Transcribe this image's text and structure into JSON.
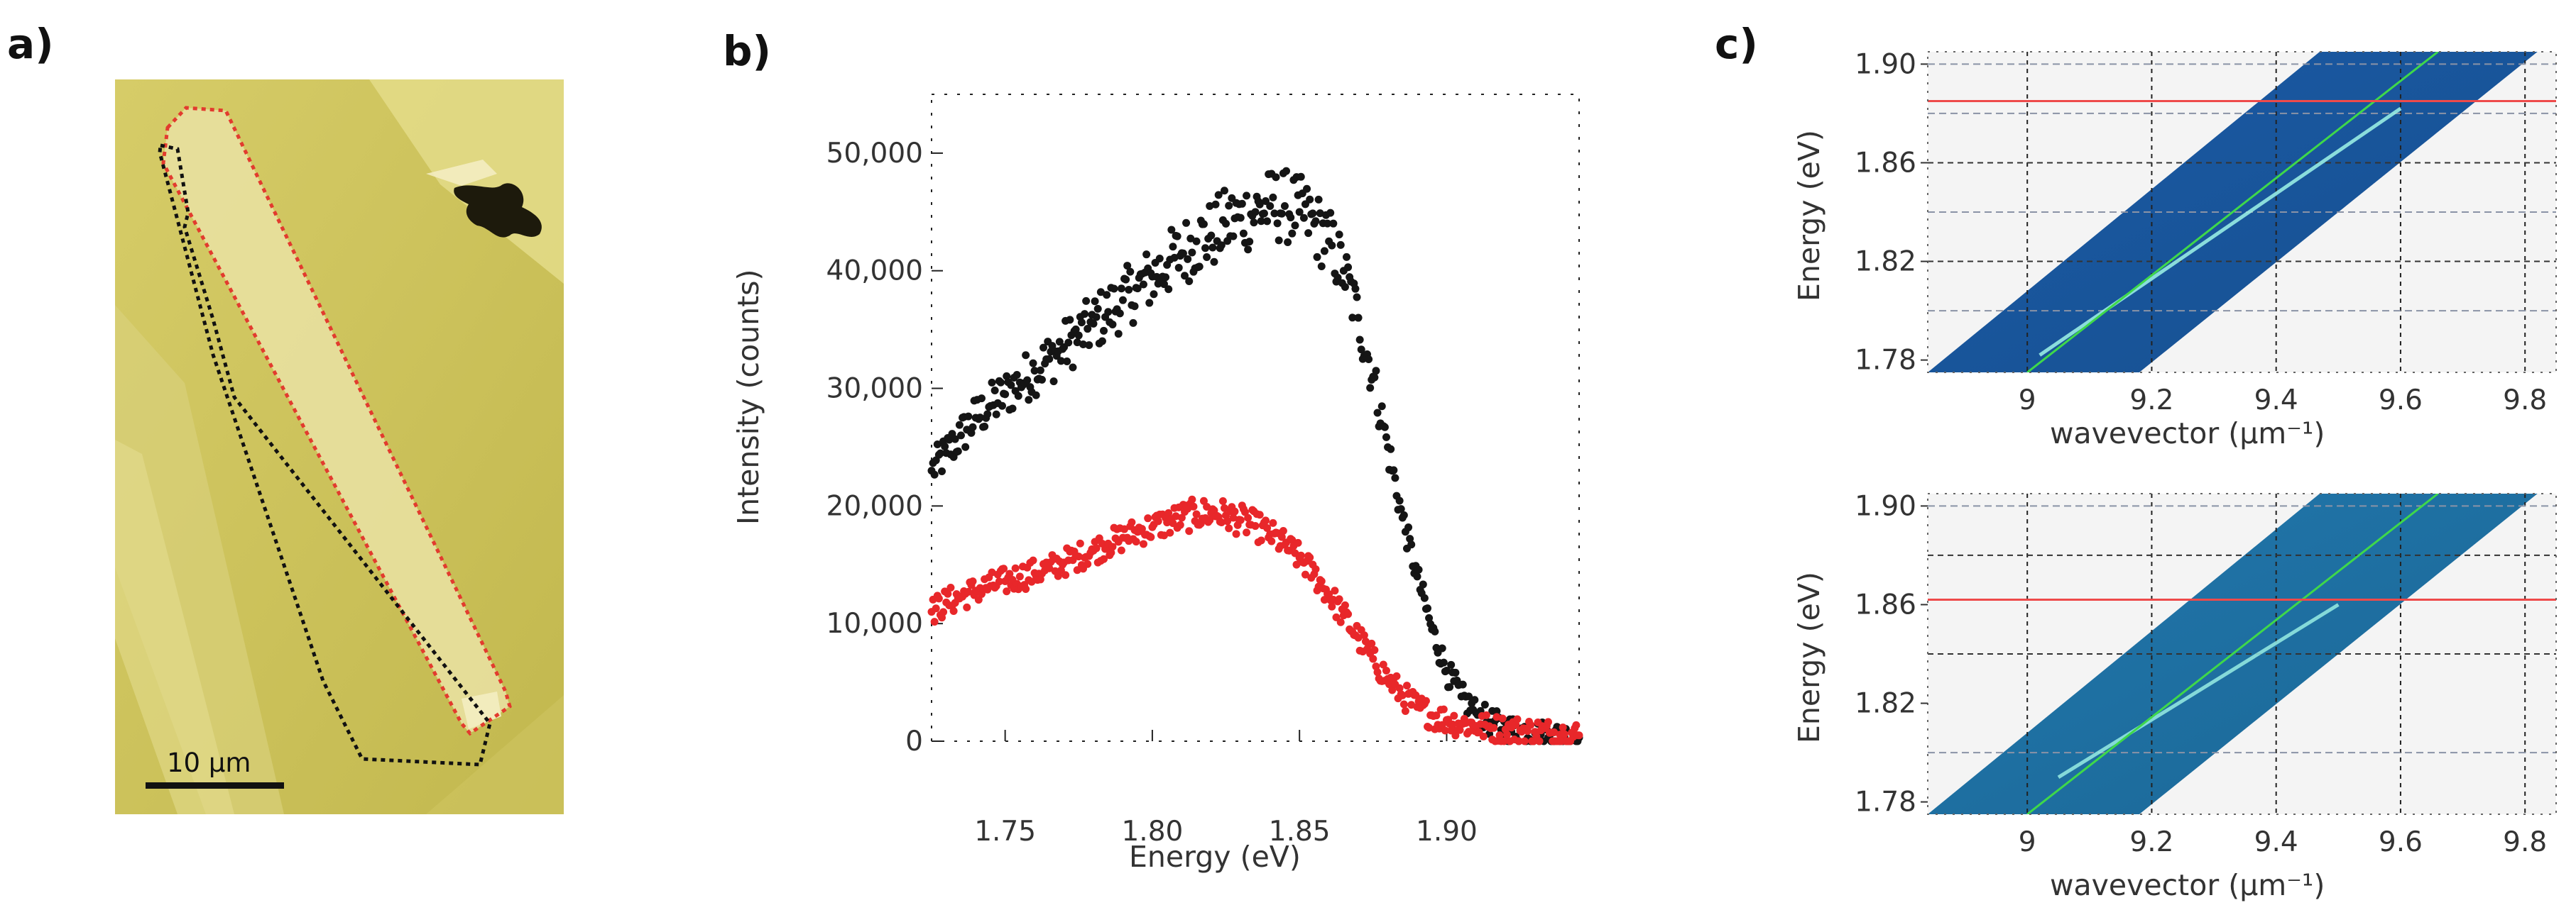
{
  "figure": {
    "panels": [
      {
        "label": "a)"
      },
      {
        "label": "b)"
      },
      {
        "label": "c)"
      }
    ],
    "scale_bar": {
      "label": "10 μm"
    },
    "colors": {
      "flake_bg": "#c9c058",
      "flake_light": "#e2d988",
      "outline_red": "#e23b2e",
      "outline_black": "#111111",
      "series_black": "#151515",
      "series_red": "#e8272a",
      "map_blue": "#1f5fa8",
      "green_line": "#3fd84a",
      "red_line": "#ee4a4a"
    }
  },
  "chart_data": [
    {
      "type": "scatter",
      "panel": "b)",
      "title": "",
      "xlabel": "Energy (eV)",
      "ylabel": "Intensity (counts)",
      "xlim": [
        1.725,
        1.945
      ],
      "ylim": [
        0,
        55000
      ],
      "xticks": [
        "1.75",
        "1.80",
        "1.85",
        "1.90"
      ],
      "xtick_values": [
        1.75,
        1.8,
        1.85,
        1.9
      ],
      "yticks": [
        "0",
        "10,000",
        "20,000",
        "30,000",
        "40,000",
        "50,000"
      ],
      "ytick_values": [
        0,
        10000,
        20000,
        30000,
        40000,
        50000
      ],
      "series": [
        {
          "name": "black",
          "color": "#151515",
          "x": [
            1.725,
            1.73,
            1.735,
            1.74,
            1.745,
            1.75,
            1.755,
            1.76,
            1.765,
            1.77,
            1.775,
            1.78,
            1.785,
            1.79,
            1.795,
            1.8,
            1.805,
            1.81,
            1.815,
            1.82,
            1.825,
            1.83,
            1.835,
            1.84,
            1.845,
            1.85,
            1.855,
            1.86,
            1.865,
            1.87,
            1.875,
            1.88,
            1.885,
            1.89,
            1.895,
            1.9,
            1.905,
            1.91,
            1.915,
            1.92,
            1.925,
            1.93,
            1.935,
            1.94,
            1.945
          ],
          "y": [
            23000,
            24500,
            26000,
            27500,
            28500,
            29500,
            30500,
            31500,
            32500,
            33500,
            34500,
            35500,
            36500,
            37500,
            38500,
            39500,
            40500,
            41500,
            42500,
            43000,
            44000,
            44500,
            45000,
            45500,
            45500,
            45000,
            44000,
            42500,
            40000,
            36000,
            31000,
            25000,
            19000,
            14000,
            9500,
            6000,
            3800,
            2400,
            1600,
            1100,
            900,
            700,
            500,
            400,
            300
          ]
        },
        {
          "name": "red",
          "color": "#e8272a",
          "x": [
            1.725,
            1.73,
            1.735,
            1.74,
            1.745,
            1.75,
            1.755,
            1.76,
            1.765,
            1.77,
            1.775,
            1.78,
            1.785,
            1.79,
            1.795,
            1.8,
            1.805,
            1.81,
            1.815,
            1.82,
            1.825,
            1.83,
            1.835,
            1.84,
            1.845,
            1.85,
            1.855,
            1.86,
            1.865,
            1.87,
            1.875,
            1.88,
            1.885,
            1.89,
            1.895,
            1.9,
            1.905,
            1.91,
            1.915,
            1.92,
            1.925,
            1.93,
            1.935,
            1.94,
            1.945
          ],
          "y": [
            11000,
            11800,
            12300,
            12800,
            13200,
            13600,
            14000,
            14300,
            14700,
            15200,
            15700,
            16200,
            16800,
            17300,
            17800,
            18200,
            18600,
            19000,
            19300,
            19400,
            19200,
            18800,
            18300,
            17600,
            16700,
            15600,
            14200,
            12500,
            10700,
            8800,
            7000,
            5300,
            3900,
            2900,
            2200,
            1800,
            1500,
            1300,
            1100,
            1000,
            900,
            800,
            700,
            600,
            500
          ]
        }
      ]
    },
    {
      "type": "heatmap",
      "panel": "c) top",
      "xlabel": "wavevector (μm⁻¹)",
      "ylabel": "Energy (eV)",
      "xlim": [
        8.84,
        9.85
      ],
      "ylim": [
        1.775,
        1.905
      ],
      "xticks": [
        "9",
        "9.2",
        "9.4",
        "9.6",
        "9.8"
      ],
      "xtick_values": [
        9.0,
        9.2,
        9.4,
        9.6,
        9.8
      ],
      "yticks": [
        "1.78",
        "1.82",
        "1.86",
        "1.90"
      ],
      "ytick_values": [
        1.78,
        1.82,
        1.86,
        1.9
      ],
      "dashed_x": [
        9.0,
        9.2,
        9.4,
        9.6,
        9.8
      ],
      "dashed_y_dark": [
        1.86,
        1.82
      ],
      "dashed_y_light": [
        1.9,
        1.88,
        1.84,
        1.8
      ],
      "map_region": {
        "x_left_at_ymin": 8.84,
        "x_right_at_ymin": 9.18,
        "x_left_at_ymax": 9.47,
        "x_right_at_ymax": 9.82
      },
      "green_line": {
        "x0": 9.0,
        "y0": 1.775,
        "x1": 9.66,
        "y1": 1.905
      },
      "dispersion": {
        "x0": 9.02,
        "y0": 1.782,
        "x1": 9.6,
        "y1": 1.882
      },
      "red_line_energy": 1.885
    },
    {
      "type": "heatmap",
      "panel": "c) bottom",
      "xlabel": "wavevector (μm⁻¹)",
      "ylabel": "Energy (eV)",
      "xlim": [
        8.84,
        9.85
      ],
      "ylim": [
        1.775,
        1.905
      ],
      "xticks": [
        "9",
        "9.2",
        "9.4",
        "9.6",
        "9.8"
      ],
      "xtick_values": [
        9.0,
        9.2,
        9.4,
        9.6,
        9.8
      ],
      "yticks": [
        "1.78",
        "1.82",
        "1.86",
        "1.90"
      ],
      "ytick_values": [
        1.78,
        1.82,
        1.86,
        1.9
      ],
      "dashed_x": [
        9.0,
        9.2,
        9.4,
        9.6,
        9.8
      ],
      "dashed_y_dark": [
        1.88,
        1.84
      ],
      "dashed_y_light": [
        1.9,
        1.8
      ],
      "map_region": {
        "x_left_at_ymin": 8.84,
        "x_right_at_ymin": 9.18,
        "x_left_at_ymax": 9.47,
        "x_right_at_ymax": 9.82
      },
      "green_line": {
        "x0": 9.0,
        "y0": 1.775,
        "x1": 9.66,
        "y1": 1.905
      },
      "dispersion": {
        "x0": 9.05,
        "y0": 1.79,
        "x1": 9.5,
        "y1": 1.86
      },
      "red_line_energy": 1.862
    }
  ]
}
